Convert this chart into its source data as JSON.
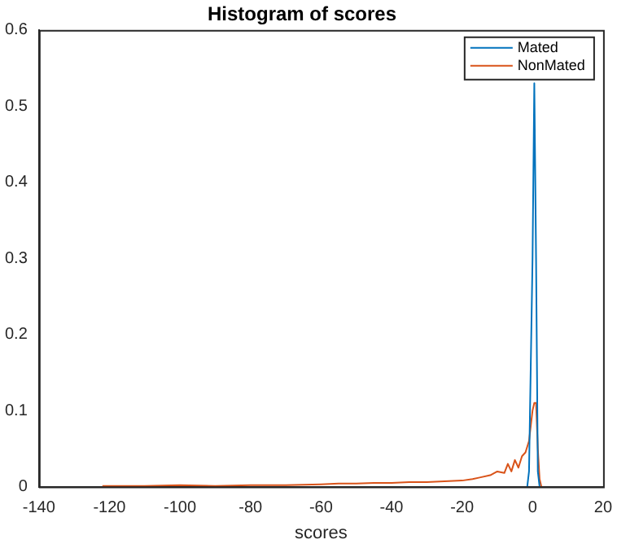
{
  "chart_data": {
    "type": "line",
    "title": "Histogram of scores",
    "xlabel": "scores",
    "xlim": [
      -140,
      20
    ],
    "xticks": [
      -140,
      -120,
      -100,
      -80,
      -60,
      -40,
      -20,
      0,
      20
    ],
    "ylim": [
      0,
      0.6
    ],
    "yticks": [
      0,
      0.1,
      0.2,
      0.3,
      0.4,
      0.5,
      0.6
    ],
    "grid": false,
    "legend": "top right",
    "marker": "none",
    "line_style": "solid",
    "series": [
      {
        "name": "Mated",
        "color": "#0072bd",
        "x": [
          -1.5,
          -1,
          0,
          0.5,
          1,
          1.5,
          2
        ],
        "values": [
          0,
          0.02,
          0.3,
          0.53,
          0.3,
          0.02,
          0
        ]
      },
      {
        "name": "NonMated",
        "color": "#d95319",
        "x": [
          -122,
          -110,
          -100,
          -90,
          -80,
          -70,
          -60,
          -55,
          -50,
          -45,
          -40,
          -35,
          -30,
          -25,
          -20,
          -17,
          -15,
          -12,
          -10,
          -8,
          -7,
          -6,
          -5,
          -4,
          -3,
          -2,
          -1,
          0,
          0.5,
          1,
          1.5,
          2,
          2.5
        ],
        "values": [
          0.001,
          0.001,
          0.002,
          0.001,
          0.002,
          0.002,
          0.003,
          0.004,
          0.004,
          0.005,
          0.005,
          0.006,
          0.006,
          0.007,
          0.008,
          0.01,
          0.012,
          0.015,
          0.02,
          0.018,
          0.03,
          0.02,
          0.035,
          0.025,
          0.04,
          0.045,
          0.06,
          0.1,
          0.11,
          0.11,
          0.05,
          0.01,
          0
        ]
      }
    ]
  }
}
